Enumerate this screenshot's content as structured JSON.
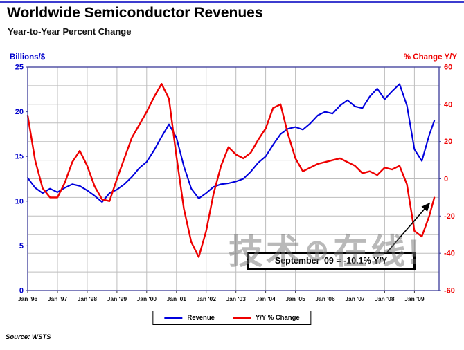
{
  "source": "Source: WSTS",
  "watermark": {
    "left": "技术",
    "icon": "⊕",
    "right": "在线!"
  },
  "chart_data": {
    "type": "line",
    "title": "Worldwide Semiconductor Revenues",
    "subtitle": "Year-to-Year Percent Change",
    "left_axis": {
      "label": "Billions/$",
      "min": 0,
      "max": 25,
      "ticks": [
        0,
        5,
        10,
        15,
        20,
        25
      ],
      "color": "#0000cc"
    },
    "right_axis": {
      "label": "% Change Y/Y",
      "min": -60,
      "max": 60,
      "ticks": [
        -60,
        -40,
        -20,
        0,
        20,
        40,
        60
      ],
      "color": "#ee0000"
    },
    "x_axis": {
      "min": 1996,
      "max": 2009.83,
      "tick_years": [
        1996,
        1997,
        1998,
        1999,
        2000,
        2001,
        2002,
        2003,
        2004,
        2005,
        2006,
        2007,
        2008,
        2009
      ],
      "tick_labels": [
        "Jan '96",
        "Jan '97",
        "Jan '98",
        "Jan '99",
        "Jan '00",
        "Jan '01",
        "Jan '02",
        "Jan '03",
        "Jan '04",
        "Jan '05",
        "Jan '06",
        "Jan '07",
        "Jan '08",
        "Jan '09"
      ]
    },
    "grid": {
      "right_axis_step": 10,
      "vertical": "yearly"
    },
    "x": [
      1996.0,
      1996.25,
      1996.5,
      1996.75,
      1997.0,
      1997.25,
      1997.5,
      1997.75,
      1998.0,
      1998.25,
      1998.5,
      1998.75,
      1999.0,
      1999.25,
      1999.5,
      1999.75,
      2000.0,
      2000.25,
      2000.5,
      2000.75,
      2001.0,
      2001.25,
      2001.5,
      2001.75,
      2002.0,
      2002.25,
      2002.5,
      2002.75,
      2003.0,
      2003.25,
      2003.5,
      2003.75,
      2004.0,
      2004.25,
      2004.5,
      2004.75,
      2005.0,
      2005.25,
      2005.5,
      2005.75,
      2006.0,
      2006.25,
      2006.5,
      2006.75,
      2007.0,
      2007.25,
      2007.5,
      2007.75,
      2008.0,
      2008.25,
      2008.5,
      2008.75,
      2009.0,
      2009.25,
      2009.5,
      2009.67
    ],
    "series": [
      {
        "name": "Revenue",
        "axis": "left",
        "color": "#0000dd",
        "values": [
          12.6,
          11.5,
          10.9,
          11.4,
          11.0,
          11.5,
          11.9,
          11.7,
          11.2,
          10.6,
          9.9,
          10.9,
          11.3,
          11.9,
          12.7,
          13.7,
          14.4,
          15.7,
          17.2,
          18.6,
          17.1,
          13.9,
          11.4,
          10.3,
          10.9,
          11.6,
          11.9,
          12.0,
          12.2,
          12.5,
          13.3,
          14.3,
          15.0,
          16.3,
          17.5,
          18.1,
          18.3,
          18.0,
          18.7,
          19.6,
          20.0,
          19.8,
          20.7,
          21.3,
          20.6,
          20.4,
          21.7,
          22.6,
          21.4,
          22.3,
          23.1,
          20.7,
          15.8,
          14.5,
          17.4,
          19.0
        ]
      },
      {
        "name": "Y/Y % Change",
        "axis": "right",
        "color": "#ee0000",
        "values": [
          34,
          10,
          -5,
          -10,
          -10,
          -2,
          9,
          15,
          7,
          -4,
          -11,
          -12,
          0,
          11,
          22,
          29,
          36,
          44,
          51,
          43,
          12,
          -16,
          -34,
          -42,
          -28,
          -8,
          7,
          17,
          13,
          11,
          14,
          21,
          27,
          38,
          40,
          24,
          11,
          4,
          6,
          8,
          9,
          10,
          11,
          9,
          7,
          3,
          4,
          2,
          6,
          5,
          7,
          -3,
          -28,
          -31,
          -20,
          -10.1
        ]
      }
    ],
    "annotation": {
      "text": "September '09 = -10.1% Y/Y",
      "target_x": 2009.67,
      "target_value": -10.1
    },
    "legend": [
      {
        "label": "Revenue",
        "color": "#0000dd"
      },
      {
        "label": "Y/Y % Change",
        "color": "#ee0000"
      }
    ]
  }
}
